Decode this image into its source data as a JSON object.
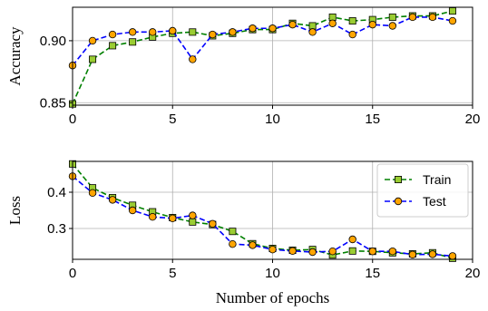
{
  "chart_data": [
    {
      "type": "line",
      "ylabel": "Accuracy",
      "xlabel": "",
      "xlim": [
        0,
        20
      ],
      "ylim": [
        0.848,
        0.927
      ],
      "xticks": [
        0,
        5,
        10,
        15,
        20
      ],
      "xtick_labels": [
        "0",
        "5",
        "10",
        "15",
        "20"
      ],
      "yticks": [
        0.85,
        0.9
      ],
      "ytick_labels": [
        "0.85",
        "0.90"
      ],
      "grid": true,
      "x": [
        0,
        1,
        2,
        3,
        4,
        5,
        6,
        7,
        8,
        9,
        10,
        11,
        12,
        13,
        14,
        15,
        16,
        17,
        18,
        19
      ],
      "series": [
        {
          "name": "Train",
          "color": "#008000",
          "marker": "square",
          "marker_fill": "#9acd32",
          "values": [
            0.849,
            0.885,
            0.896,
            0.899,
            0.903,
            0.906,
            0.907,
            0.904,
            0.906,
            0.909,
            0.909,
            0.914,
            0.912,
            0.919,
            0.916,
            0.917,
            0.919,
            0.92,
            0.92,
            0.924
          ]
        },
        {
          "name": "Test",
          "color": "#0000ff",
          "marker": "circle",
          "marker_fill": "#ffa500",
          "values": [
            0.88,
            0.9,
            0.905,
            0.907,
            0.907,
            0.908,
            0.885,
            0.905,
            0.907,
            0.91,
            0.91,
            0.913,
            0.907,
            0.914,
            0.905,
            0.913,
            0.912,
            0.919,
            0.919,
            0.916
          ]
        }
      ]
    },
    {
      "type": "line",
      "ylabel": "Loss",
      "xlabel": "Number of epochs",
      "xlim": [
        0,
        20
      ],
      "ylim": [
        0.215,
        0.485
      ],
      "xticks": [
        0,
        5,
        10,
        15,
        20
      ],
      "xtick_labels": [
        "0",
        "5",
        "10",
        "15",
        "20"
      ],
      "yticks": [
        0.3,
        0.4
      ],
      "ytick_labels": [
        "0.3",
        "0.4"
      ],
      "grid": true,
      "legend": "top-right",
      "x": [
        0,
        1,
        2,
        3,
        4,
        5,
        6,
        7,
        8,
        9,
        10,
        11,
        12,
        13,
        14,
        15,
        16,
        17,
        18,
        19
      ],
      "series": [
        {
          "name": "Train",
          "color": "#008000",
          "marker": "square",
          "marker_fill": "#9acd32",
          "values": [
            0.478,
            0.412,
            0.385,
            0.364,
            0.346,
            0.33,
            0.318,
            0.311,
            0.292,
            0.258,
            0.245,
            0.24,
            0.242,
            0.227,
            0.238,
            0.237,
            0.233,
            0.23,
            0.233,
            0.218
          ]
        },
        {
          "name": "Test",
          "color": "#0000ff",
          "marker": "circle",
          "marker_fill": "#ffa500",
          "values": [
            0.444,
            0.398,
            0.379,
            0.35,
            0.332,
            0.328,
            0.336,
            0.313,
            0.257,
            0.254,
            0.242,
            0.238,
            0.235,
            0.237,
            0.27,
            0.237,
            0.237,
            0.228,
            0.229,
            0.224
          ]
        }
      ]
    }
  ]
}
